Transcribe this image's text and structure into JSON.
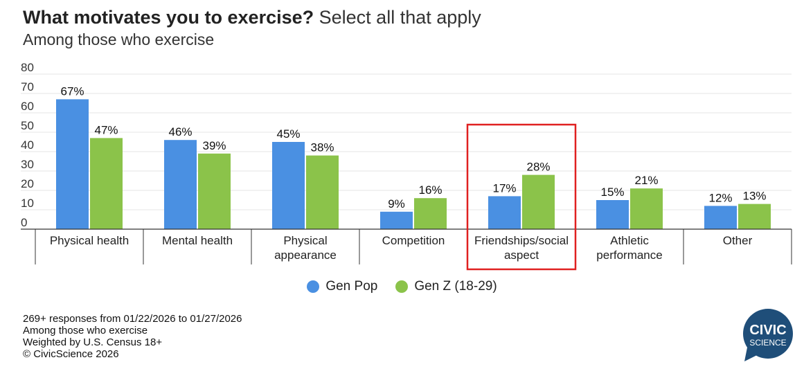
{
  "header": {
    "title_bold": "What motivates you to exercise?",
    "title_rest": "Select all that apply",
    "subtitle": "Among those who exercise"
  },
  "chart_data": {
    "type": "bar",
    "categories": [
      [
        "Physical health"
      ],
      [
        "Mental health"
      ],
      [
        "Physical",
        "appearance"
      ],
      [
        "Competition"
      ],
      [
        "Friendships/social",
        "aspect"
      ],
      [
        "Athletic",
        "performance"
      ],
      [
        "Other"
      ]
    ],
    "series": [
      {
        "name": "Gen Pop",
        "color": "#4a90e2",
        "values": [
          67,
          46,
          45,
          9,
          17,
          15,
          12
        ]
      },
      {
        "name": "Gen Z (18-29)",
        "color": "#8bc34a",
        "values": [
          47,
          39,
          38,
          16,
          28,
          21,
          13
        ]
      }
    ],
    "value_suffix": "%",
    "ylim": [
      0,
      80
    ],
    "yticks": [
      0,
      10,
      20,
      30,
      40,
      50,
      60,
      70,
      80
    ],
    "grid": true,
    "legend_position": "bottom-center",
    "highlight": {
      "category_index": 4,
      "color": "#e02020"
    }
  },
  "footer": {
    "lines": [
      "269+ responses from 01/22/2026 to 01/27/2026",
      "Among those who exercise",
      "Weighted by U.S. Census 18+",
      "© CivicScience 2026"
    ]
  },
  "logo": {
    "line1": "CIVIC",
    "line2": "SCIENCE",
    "color": "#1f4e79"
  }
}
